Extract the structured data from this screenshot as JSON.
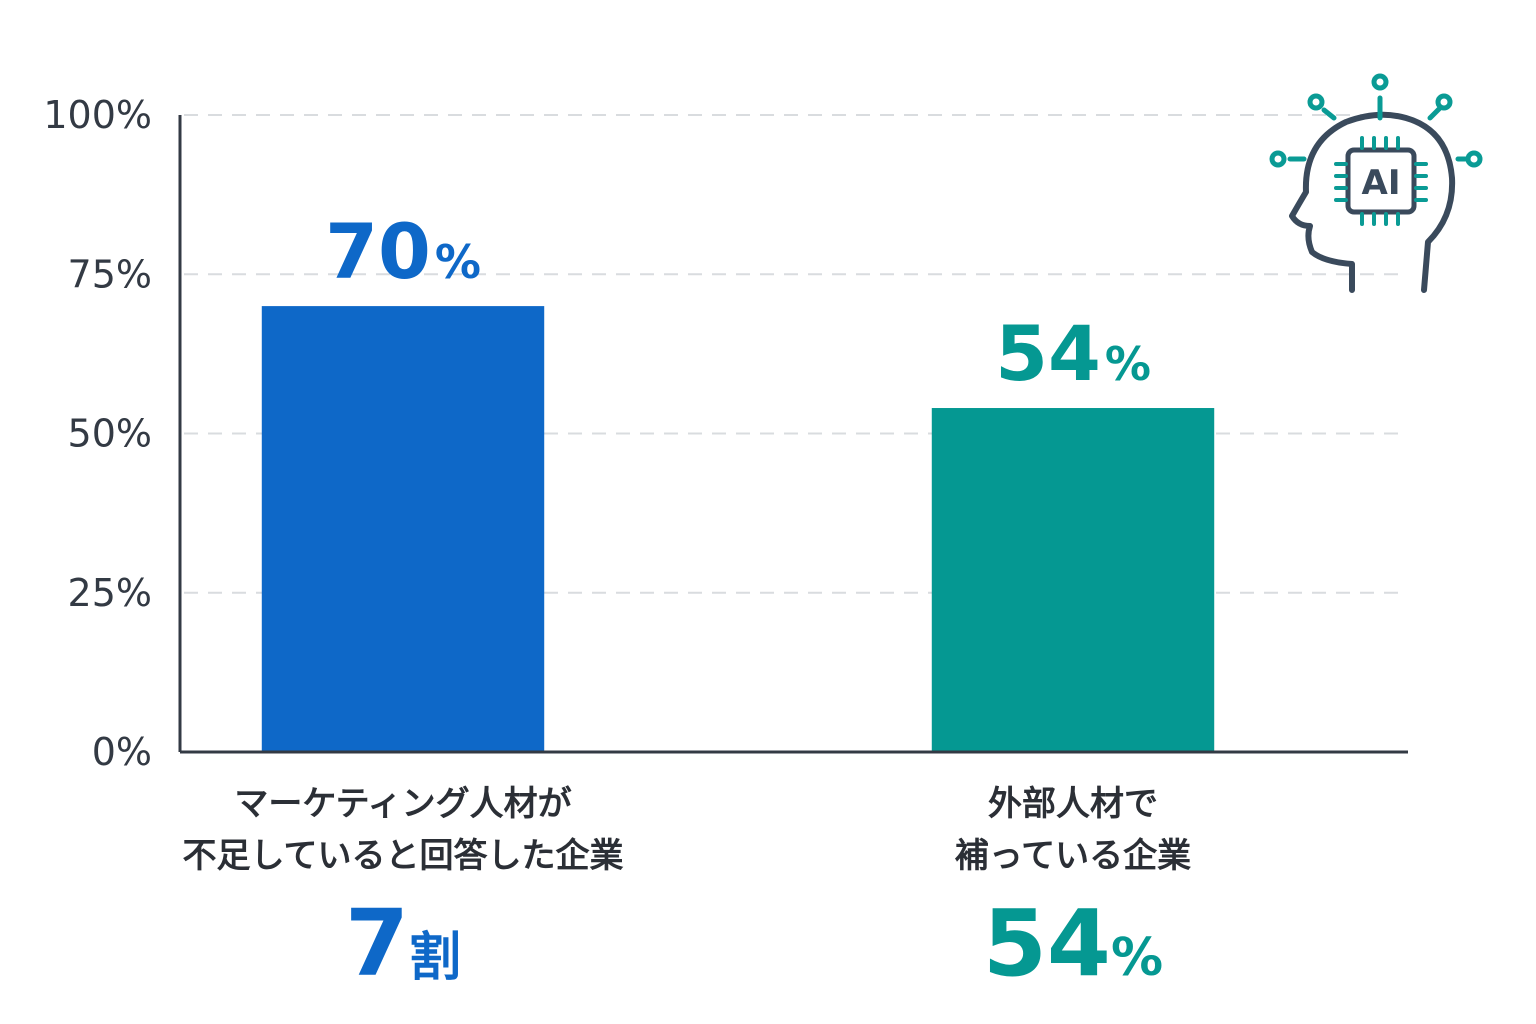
{
  "chart_data": {
    "type": "bar",
    "categories": [
      "マーケティング人材が\n不足していると回答した企業",
      "外部人材で\n補っている企業"
    ],
    "values": [
      70,
      54
    ],
    "value_labels": [
      {
        "number": "70",
        "unit": "%"
      },
      {
        "number": "54",
        "unit": "%"
      }
    ],
    "summary_labels": [
      {
        "number": "7",
        "unit": "割"
      },
      {
        "number": "54",
        "unit": "%"
      }
    ],
    "colors": [
      "#0e68c8",
      "#059892"
    ],
    "ylim": [
      0,
      100
    ],
    "yticks": [
      0,
      25,
      50,
      75,
      100
    ],
    "ytick_labels": [
      "0%",
      "25%",
      "50%",
      "75%",
      "100%"
    ],
    "grid": true,
    "title": "",
    "xlabel": "",
    "ylabel": ""
  },
  "icon": {
    "name": "ai-head-icon",
    "text": "AI",
    "head_color": "#3a4a5c",
    "node_color": "#0a9b95"
  }
}
